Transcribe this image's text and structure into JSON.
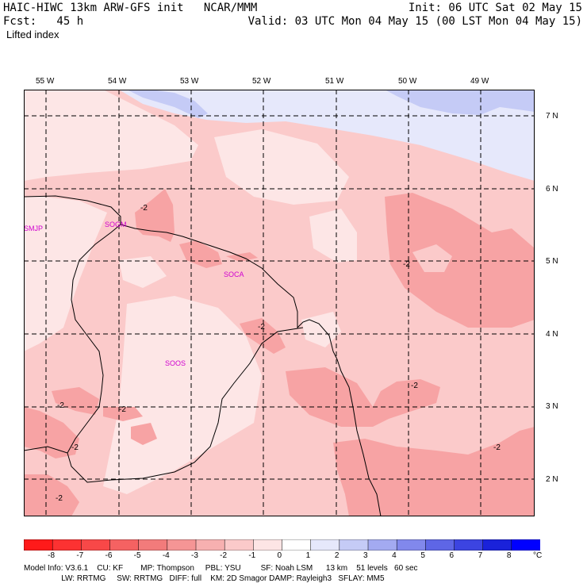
{
  "header": {
    "model_line": "HAIC-HIWC 13km ARW-GFS init   NCAR/MMM",
    "init": "Init: 06 UTC Sat 02 May 15",
    "fcst": "Fcst:   45 h",
    "valid": "Valid: 03 UTC Mon 04 May 15 (00 LST Mon 04 May 15)",
    "field": "Lifted index"
  },
  "map": {
    "lon_labels": [
      "55 W",
      "54 W",
      "53 W",
      "52 W",
      "51 W",
      "50 W",
      "49 W"
    ],
    "lat_labels": [
      "7 N",
      "6 N",
      "5 N",
      "4 N",
      "3 N",
      "2 N"
    ],
    "stations": [
      "SMJP",
      "SOGM",
      "SOCA",
      "SOOS"
    ],
    "contour_labels": [
      "-2",
      "-2",
      "-2",
      "-2",
      "-2",
      "-2",
      "-2",
      "-2",
      "-2"
    ],
    "colors": {
      "base": "#fbcaca",
      "pale": "#fde6e6",
      "medium": "#f7a3a4",
      "light_blue": "#e6e8fb",
      "blue": "#c5cbf6",
      "coast": "#000000",
      "grid": "#000000",
      "station": "#d000d0"
    }
  },
  "colorbar": {
    "ticks": [
      "-8",
      "-7",
      "-6",
      "-5",
      "-4",
      "-3",
      "-2",
      "-1",
      "0",
      "1",
      "2",
      "3",
      "4",
      "5",
      "6",
      "7",
      "8"
    ],
    "unit": "°C",
    "colors": [
      "#ff1a1a",
      "#fc3232",
      "#f84848",
      "#f56262",
      "#f27b7b",
      "#f59595",
      "#f7b0b0",
      "#fbcaca",
      "#fde5e5",
      "#ffffff",
      "#e6e8fb",
      "#c5cbf6",
      "#a3aaf1",
      "#8188ec",
      "#5e66e6",
      "#3c44e1",
      "#1a22da",
      "#0000ff"
    ]
  },
  "footer": {
    "line1": "Model Info: V3.6.1    CU: KF        MP: Thompson     PBL: YSU         SF: Noah LSM      13 km    51 levels   60 sec",
    "line2": "                 LW: RRTMG     SW: RRTMG   DIFF: full    KM: 2D Smagor DAMP: Rayleigh3   SFLAY: MM5"
  }
}
